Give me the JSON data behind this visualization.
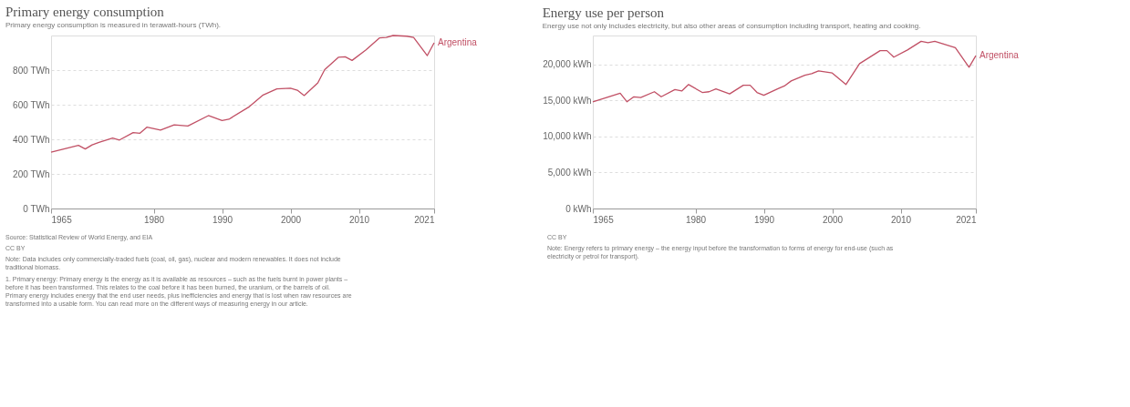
{
  "chart_data": [
    {
      "type": "line",
      "title": "Primary energy consumption",
      "subtitle": "Primary energy consumption is measured in terawatt-hours (TWh).",
      "x": [
        1965,
        1969,
        1970,
        1971,
        1972,
        1974,
        1975,
        1977,
        1978,
        1979,
        1981,
        1983,
        1985,
        1988,
        1990,
        1991,
        1994,
        1996,
        1998,
        2000,
        2001,
        2002,
        2004,
        2005,
        2007,
        2008,
        2009,
        2011,
        2013,
        2014,
        2015,
        2017,
        2018,
        2020,
        2021
      ],
      "series": [
        {
          "name": "Argentina",
          "color": "#c15065",
          "values": [
            326,
            365,
            344,
            368,
            382,
            407,
            396,
            439,
            435,
            470,
            453,
            484,
            477,
            537,
            509,
            516,
            589,
            656,
            691,
            695,
            684,
            653,
            726,
            803,
            874,
            877,
            856,
            916,
            986,
            989,
            1000,
            996,
            989,
            884,
            958
          ]
        }
      ],
      "xlim": [
        1965,
        2021
      ],
      "xticks": [
        1965,
        1980,
        1990,
        2000,
        2010,
        2021
      ],
      "ylim": [
        0,
        1000
      ],
      "yticks": [
        {
          "value": 0,
          "label": "0 TWh"
        },
        {
          "value": 200,
          "label": "200 TWh"
        },
        {
          "value": 400,
          "label": "400 TWh"
        },
        {
          "value": 600,
          "label": "600 TWh"
        },
        {
          "value": 800,
          "label": "800 TWh"
        }
      ],
      "grid": "y",
      "line_style": "solid",
      "marker": "none",
      "annotations": [
        "Source: Statistical Review of World Energy, and EIA",
        "CC BY",
        "Note: Data includes only commercially-traded fuels (coal, oil, gas), nuclear and modern renewables. It does not include traditional biomass.",
        "1. Primary energy: Primary energy is the energy as it is available as resources – such as the fuels burnt in power plants – before it has been transformed. This relates to the coal before it has been burned, the uranium, or the barrels of oil. Primary energy includes energy that the end user needs, plus inefficiencies and energy that is lost when raw resources are transformed into a usable form. You can read more on the different ways of measuring energy in our article."
      ]
    },
    {
      "type": "line",
      "title": "Energy use per person",
      "subtitle": "Energy use not only includes electricity, but also other areas of consumption including transport, heating and cooking.",
      "x": [
        1965,
        1969,
        1970,
        1971,
        1972,
        1974,
        1975,
        1977,
        1978,
        1979,
        1981,
        1982,
        1983,
        1985,
        1987,
        1988,
        1989,
        1990,
        1992,
        1993,
        1994,
        1996,
        1997,
        1998,
        2000,
        2002,
        2004,
        2007,
        2008,
        2009,
        2011,
        2013,
        2014,
        2015,
        2018,
        2020,
        2021
      ],
      "series": [
        {
          "name": "Argentina",
          "color": "#c15065",
          "values": [
            14800,
            16000,
            14800,
            15500,
            15400,
            16200,
            15500,
            16500,
            16300,
            17200,
            16100,
            16200,
            16600,
            15900,
            17100,
            17100,
            16100,
            15700,
            16600,
            17000,
            17700,
            18500,
            18700,
            19100,
            18800,
            17200,
            20100,
            21900,
            21900,
            21000,
            22000,
            23200,
            23000,
            23200,
            22300,
            19600,
            21200
          ]
        }
      ],
      "xlim": [
        1965,
        2021
      ],
      "xticks": [
        1965,
        1980,
        1990,
        2000,
        2010,
        2021
      ],
      "ylim": [
        0,
        24000
      ],
      "yticks": [
        {
          "value": 0,
          "label": "0 kWh"
        },
        {
          "value": 5000,
          "label": "5,000 kWh"
        },
        {
          "value": 10000,
          "label": "10,000 kWh"
        },
        {
          "value": 15000,
          "label": "15,000 kWh"
        },
        {
          "value": 20000,
          "label": "20,000 kWh"
        }
      ],
      "grid": "y",
      "line_style": "solid",
      "marker": "none",
      "annotations": [
        "CC BY",
        "Note: Energy refers to primary energy – the energy input before the transformation to forms of energy for end-use (such as electricity or petrol for transport)."
      ]
    }
  ]
}
